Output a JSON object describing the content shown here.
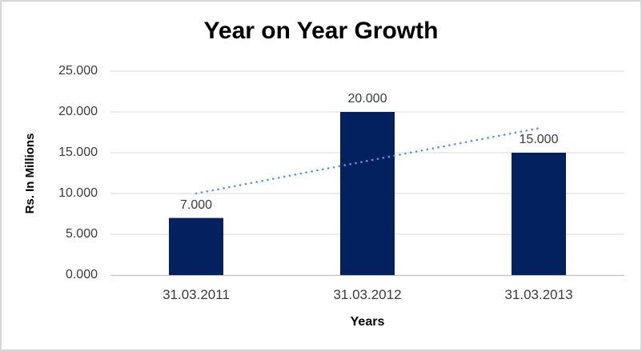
{
  "chart_data": {
    "type": "bar",
    "title": "Year on Year Growth",
    "xlabel": "Years",
    "ylabel": "Rs. In Millions",
    "categories": [
      "31.03.2011",
      "31.03.2012",
      "31.03.2013"
    ],
    "values": [
      7.0,
      20.0,
      15.0
    ],
    "data_labels": [
      "7.000",
      "20.000",
      "15.000"
    ],
    "ytick_labels": [
      "0.000",
      "5.000",
      "10.000",
      "15.000",
      "20.000",
      "25.000"
    ],
    "ylim": [
      0,
      25
    ],
    "grid": true,
    "legend": "none",
    "bar_color": "#03215F",
    "gridline_color": "#d9d9d9",
    "axis_line_color": "#bfbfbf",
    "label_color": "#3b3b3b",
    "trendline": {
      "type": "linear",
      "style": "dotted",
      "color": "#5B9BD5",
      "values_at_categories": [
        10.0,
        14.0,
        18.0
      ]
    }
  }
}
